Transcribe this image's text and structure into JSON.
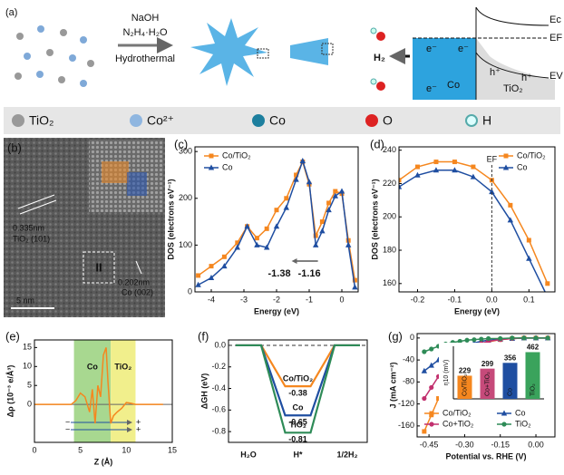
{
  "panels": [
    "(a)",
    "(b)"
  ],
  "scheme": {
    "reagents": [
      "NaOH",
      "N₂H₄·H₂O"
    ],
    "method": "Hydrothermal",
    "product": "H₂",
    "electron": "e⁻",
    "metal": "Co",
    "support": "TiO₂",
    "hole": "h⁺",
    "levels": [
      "Ec",
      "EF",
      "EV"
    ]
  },
  "species": [
    "TiO₂",
    "Co²⁺",
    "Co",
    "O",
    "H"
  ],
  "micrograph": {
    "d1": "0.335nm",
    "p1": "TiO₂ (101)",
    "d2": "0.202nm",
    "p2": "Co (002)",
    "region": "II",
    "scale": "5 nm"
  },
  "chart_data": [
    {
      "type": "line",
      "panel": "(c)",
      "x_label": "Energy (eV)",
      "y_label": "DOS (electrons eV⁻¹)",
      "x": [
        -4.4,
        -4,
        -3.6,
        -3.2,
        -2.9,
        -2.6,
        -2.3,
        -2,
        -1.7,
        -1.4,
        -1.2,
        -1,
        -0.8,
        -0.6,
        -0.4,
        -0.2,
        0,
        0.2,
        0.4
      ],
      "series": [
        {
          "name": "Co/TiO₂",
          "color": "#f5871f",
          "marker": "square",
          "values": [
            35,
            55,
            75,
            105,
            140,
            115,
            135,
            175,
            200,
            250,
            278,
            230,
            120,
            150,
            190,
            215,
            210,
            110,
            25
          ]
        },
        {
          "name": "Co",
          "color": "#1f4ea1",
          "marker": "triangle",
          "values": [
            15,
            30,
            55,
            95,
            140,
            100,
            95,
            140,
            180,
            240,
            280,
            235,
            100,
            130,
            175,
            205,
            215,
            100,
            10
          ]
        }
      ],
      "xlim": [
        -4.5,
        0.5
      ],
      "xticks": [
        -4,
        -3,
        -2,
        -1,
        0
      ],
      "ylim": [
        0,
        310
      ],
      "yticks": [
        0,
        100,
        200,
        300
      ],
      "legend": "upper left",
      "annotations": [
        "-1.38",
        "-1.16"
      ]
    },
    {
      "type": "line",
      "panel": "(d)",
      "x_label": "Energy (eV)",
      "y_label": "DOS (electrons eV⁻¹)",
      "x": [
        -0.25,
        -0.2,
        -0.15,
        -0.1,
        -0.05,
        0,
        0.05,
        0.1,
        0.15
      ],
      "series": [
        {
          "name": "Co/TiO₂",
          "color": "#f5871f",
          "marker": "square",
          "values": [
            222,
            230,
            233,
            233,
            230,
            222,
            207,
            186,
            160
          ]
        },
        {
          "name": "Co",
          "color": "#1f4ea1",
          "marker": "triangle",
          "values": [
            218,
            225,
            228,
            228,
            224,
            215,
            198,
            175,
            152
          ]
        }
      ],
      "xlim": [
        -0.25,
        0.17
      ],
      "xticks": [
        -0.2,
        -0.1,
        {
          "value": 0,
          "label": "0.0"
        },
        0.1
      ],
      "ylim": [
        155,
        242
      ],
      "yticks": [
        160,
        180,
        200,
        220,
        240
      ],
      "legend": "upper right",
      "annotations": [
        "EF"
      ]
    },
    {
      "type": "line",
      "panel": "(e)",
      "x_label": "Z (Å)",
      "y_label": "Δρ (10⁻³ e/Å³)",
      "x": [
        0,
        2,
        4,
        4.5,
        5,
        5.5,
        6,
        6.3,
        6.6,
        6.9,
        7.2,
        7.5,
        7.8,
        8,
        8.3,
        8.6,
        9,
        9.5,
        10,
        10.5,
        11,
        12,
        14
      ],
      "series": [
        {
          "color": "#f5871f",
          "values": [
            0,
            0,
            0,
            1,
            3,
            2,
            -2,
            4,
            -5,
            5,
            2,
            13,
            15,
            6,
            -5,
            -3,
            -2,
            -1,
            0.5,
            0.3,
            0,
            0,
            0
          ]
        }
      ],
      "xlim": [
        0,
        15
      ],
      "xticks": [
        0,
        5,
        10,
        15
      ],
      "ylim": [
        -10,
        17
      ],
      "yticks": [
        0,
        5,
        10,
        15
      ],
      "regions": [
        {
          "name": "Co",
          "range": [
            4.3,
            8.3
          ],
          "color": "#a8d890"
        },
        {
          "name": "TiO₂",
          "range": [
            8.3,
            11
          ],
          "color": "#f1ef8c"
        }
      ],
      "signs": [
        "−",
        "+"
      ]
    },
    {
      "type": "energy",
      "panel": "(f)",
      "y_label": "ΔGH (eV)",
      "categories": [
        "H₂O",
        "H*",
        "1/2H₂"
      ],
      "series": [
        {
          "name": "Co/TiO₂",
          "color": "#f5871f",
          "values": [
            0,
            -0.38,
            0
          ]
        },
        {
          "name": "Co",
          "color": "#1f4ea1",
          "values": [
            0,
            -0.65,
            0
          ]
        },
        {
          "name": "TiO₂",
          "color": "#2e8b57",
          "values": [
            0,
            -0.81,
            0
          ]
        }
      ],
      "ylim": [
        -0.9,
        0.05
      ],
      "yticks": [
        {
          "value": 0,
          "label": "0.0"
        },
        -0.2,
        -0.4,
        -0.6,
        -0.8
      ]
    },
    {
      "type": "line",
      "panel": "(g)",
      "x_label": "Potential vs. RHE (V)",
      "y_label": "J (mA cm⁻²)",
      "x": [
        -0.47,
        -0.44,
        -0.41,
        -0.38,
        -0.35,
        -0.32,
        -0.29,
        -0.26,
        -0.23,
        -0.2,
        -0.15,
        -0.1,
        -0.05,
        0,
        0.05
      ],
      "series": [
        {
          "name": "Co/TiO₂",
          "color": "#f5871f",
          "marker": "square",
          "values": [
            -170,
            -140,
            -110,
            -85,
            -62,
            -44,
            -30,
            -20,
            -12,
            -7,
            -3,
            -1,
            0,
            0,
            0
          ]
        },
        {
          "name": "Co",
          "color": "#1f4ea1",
          "marker": "triangle",
          "values": [
            -60,
            -50,
            -40,
            -32,
            -25,
            -18,
            -13,
            -9,
            -6,
            -4,
            -2,
            -1,
            0,
            0,
            0
          ]
        },
        {
          "name": "Co+TiO₂",
          "color": "#c2306e",
          "marker": "circle",
          "values": [
            -110,
            -90,
            -70,
            -55,
            -42,
            -30,
            -22,
            -15,
            -10,
            -6,
            -3,
            -1,
            0,
            0,
            0
          ]
        },
        {
          "name": "TiO₂",
          "color": "#2e8b57",
          "marker": "circle",
          "values": [
            -25,
            -20,
            -15,
            -11,
            -8,
            -6,
            -4,
            -3,
            -2,
            -1,
            -1,
            0,
            0,
            0,
            0
          ]
        }
      ],
      "xlim": [
        -0.5,
        0.08
      ],
      "xticks": [
        -0.45,
        {
          "value": -0.3,
          "label": "-0.30"
        },
        -0.15,
        {
          "value": 0,
          "label": "0.00"
        }
      ],
      "ylim": [
        -180,
        8
      ],
      "yticks": [
        0,
        -40,
        -80,
        -120,
        -160
      ],
      "legend": "lower center"
    },
    {
      "type": "bar",
      "y_label": "η10 (mV)",
      "categories": [
        "Co/TiO₂",
        "Co+TiO₂",
        "Co",
        "TiO₂"
      ],
      "values": [
        229,
        299,
        356,
        462
      ],
      "colors": [
        "#f5871f",
        "#c64a7a",
        "#1f4ea1",
        "#3aa35c"
      ],
      "ylim": [
        0,
        520
      ]
    }
  ]
}
